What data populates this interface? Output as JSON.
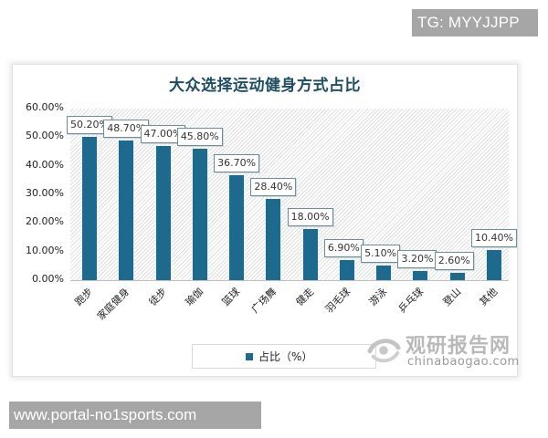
{
  "overlay": {
    "top_tag": "TG: MYYJJPP",
    "bottom_tag": "www.portal-no1sports.com"
  },
  "watermark": {
    "cn": "观研报告网",
    "en": "chinabaogao.com",
    "icon": "eye-swirl-logo-icon"
  },
  "colors": {
    "bar": "#1d6a8e",
    "title": "#1f4e63",
    "tag_bg": "#a6a6a6"
  },
  "chart_data": {
    "type": "bar",
    "title": "大众选择运动健身方式占比",
    "xlabel": "",
    "ylabel": "",
    "ylim": [
      0,
      60
    ],
    "y_ticks": [
      "0.00%",
      "10.00%",
      "20.00%",
      "30.00%",
      "40.00%",
      "50.00%",
      "60.00%"
    ],
    "grid": false,
    "legend_position": "bottom",
    "categories": [
      "跑步",
      "家庭健身",
      "徒步",
      "瑜伽",
      "篮球",
      "广场舞",
      "健走",
      "羽毛球",
      "游泳",
      "乒乓球",
      "登山",
      "其他"
    ],
    "series": [
      {
        "name": "占比（%）",
        "values": [
          50.2,
          48.7,
          47.0,
          45.8,
          36.7,
          28.4,
          18.0,
          6.9,
          5.1,
          3.2,
          2.6,
          10.4
        ],
        "labels": [
          "50.20%",
          "48.70%",
          "47.00%",
          "45.80%",
          "36.70%",
          "28.40%",
          "18.00%",
          "6.90%",
          "5.10%",
          "3.20%",
          "2.60%",
          "10.40%"
        ]
      }
    ]
  }
}
